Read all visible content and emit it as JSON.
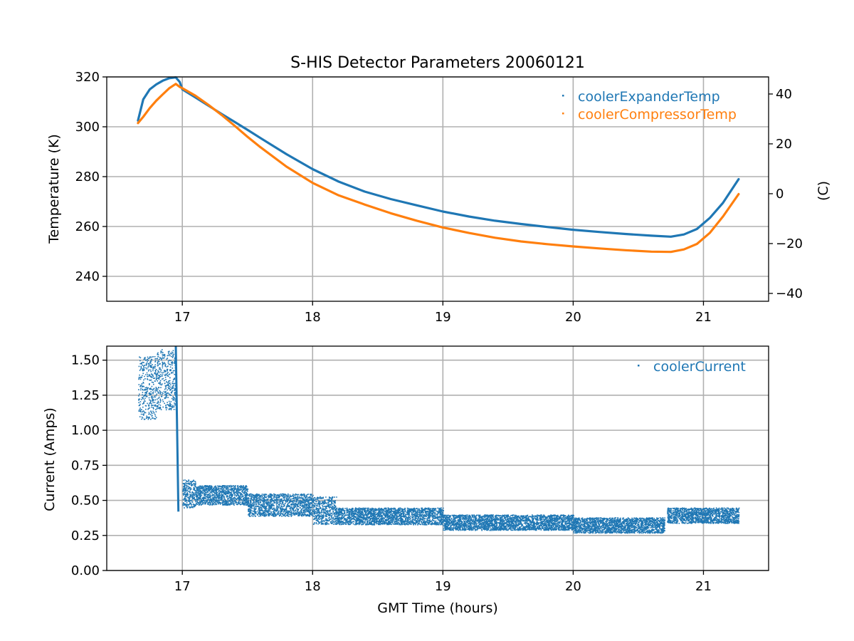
{
  "chart_data": [
    {
      "type": "scatter",
      "title": "S-HIS Detector Parameters 20060121",
      "xlabel": "",
      "ylabel": "Temperature (K)",
      "y2label": "(C)",
      "xlim": [
        16.42,
        21.5
      ],
      "ylim": [
        230,
        320
      ],
      "y2lim": [
        -43.15,
        46.85
      ],
      "xticks": [
        17,
        18,
        19,
        20,
        21
      ],
      "yticks": [
        240,
        260,
        280,
        300,
        320
      ],
      "y2ticks": [
        -40,
        -20,
        0,
        20,
        40
      ],
      "grid": true,
      "legend_position": "top-right",
      "series": [
        {
          "name": "coolerExpanderTemp",
          "color": "#1f77b4",
          "x": [
            16.66,
            16.7,
            16.75,
            16.8,
            16.85,
            16.9,
            16.95,
            16.98,
            17.0,
            17.1,
            17.2,
            17.3,
            17.4,
            17.5,
            17.6,
            17.8,
            18.0,
            18.2,
            18.4,
            18.6,
            18.8,
            19.0,
            19.2,
            19.4,
            19.6,
            19.8,
            20.0,
            20.2,
            20.4,
            20.6,
            20.75,
            20.85,
            20.95,
            21.05,
            21.15,
            21.27
          ],
          "y": [
            302.5,
            311.0,
            315.0,
            317.0,
            318.5,
            319.5,
            319.8,
            318.0,
            315.0,
            311.8,
            308.5,
            305.2,
            302.0,
            298.8,
            295.5,
            289.0,
            283.0,
            278.0,
            274.0,
            271.0,
            268.5,
            266.0,
            264.0,
            262.3,
            261.0,
            259.8,
            258.7,
            257.8,
            257.0,
            256.3,
            255.9,
            256.8,
            259.0,
            263.5,
            269.5,
            279.0
          ]
        },
        {
          "name": "coolerCompressorTemp",
          "color": "#ff7f0e",
          "x": [
            16.66,
            16.7,
            16.75,
            16.8,
            16.85,
            16.9,
            16.95,
            16.98,
            17.0,
            17.1,
            17.2,
            17.3,
            17.4,
            17.5,
            17.6,
            17.8,
            18.0,
            18.2,
            18.4,
            18.6,
            18.8,
            19.0,
            19.2,
            19.4,
            19.6,
            19.8,
            20.0,
            20.2,
            20.4,
            20.6,
            20.75,
            20.85,
            20.95,
            21.05,
            21.15,
            21.27
          ],
          "y": [
            301.5,
            304.0,
            307.5,
            310.5,
            313.0,
            315.5,
            317.2,
            316.0,
            315.5,
            312.5,
            308.8,
            304.8,
            300.5,
            296.0,
            291.8,
            284.0,
            277.5,
            272.5,
            268.8,
            265.3,
            262.3,
            259.6,
            257.4,
            255.5,
            254.0,
            252.9,
            252.0,
            251.2,
            250.5,
            249.9,
            249.8,
            250.8,
            253.0,
            257.5,
            264.0,
            273.0
          ]
        }
      ]
    },
    {
      "type": "scatter",
      "title": "",
      "xlabel": "GMT Time (hours)",
      "ylabel": "Current (Amps)",
      "xlim": [
        16.42,
        21.5
      ],
      "ylim": [
        0.0,
        1.6
      ],
      "xticks": [
        17,
        18,
        19,
        20,
        21
      ],
      "yticks": [
        0.0,
        0.25,
        0.5,
        0.75,
        1.0,
        1.25,
        1.5
      ],
      "ytick_labels": [
        "0.00",
        "0.25",
        "0.50",
        "0.75",
        "1.00",
        "1.25",
        "1.50"
      ],
      "grid": true,
      "legend_position": "top-right",
      "series": [
        {
          "name": "coolerCurrent",
          "color": "#1f77b4",
          "segments": [
            {
              "x_start": 16.66,
              "x_end": 16.8,
              "y_low": 1.08,
              "y_high": 1.53
            },
            {
              "x_start": 16.8,
              "x_end": 16.95,
              "y_low": 1.15,
              "y_high": 1.58
            },
            {
              "x_start": 17.0,
              "x_end": 17.1,
              "y_low": 0.45,
              "y_high": 0.65
            },
            {
              "x_start": 17.1,
              "x_end": 17.5,
              "y_low": 0.47,
              "y_high": 0.61
            },
            {
              "x_start": 17.5,
              "x_end": 18.0,
              "y_low": 0.39,
              "y_high": 0.55
            },
            {
              "x_start": 18.0,
              "x_end": 18.18,
              "y_low": 0.33,
              "y_high": 0.53
            },
            {
              "x_start": 18.18,
              "x_end": 19.0,
              "y_low": 0.33,
              "y_high": 0.45
            },
            {
              "x_start": 19.0,
              "x_end": 20.0,
              "y_low": 0.29,
              "y_high": 0.4
            },
            {
              "x_start": 20.0,
              "x_end": 20.7,
              "y_low": 0.27,
              "y_high": 0.38
            },
            {
              "x_start": 20.72,
              "x_end": 21.27,
              "y_low": 0.34,
              "y_high": 0.45
            }
          ],
          "drop": {
            "x": 16.95,
            "y_from": 1.6,
            "y_to": 0.42
          }
        }
      ]
    }
  ]
}
